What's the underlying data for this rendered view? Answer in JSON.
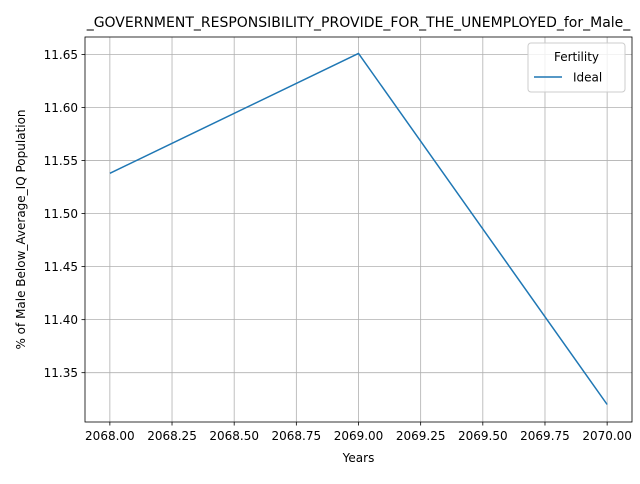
{
  "chart_data": {
    "type": "line",
    "title": "_GOVERNMENT_RESPONSIBILITY_PROVIDE_FOR_THE_UNEMPLOYED_for_Male_",
    "xlabel": "Years",
    "ylabel": "% of Male Below_Average_IQ Population",
    "xlim": [
      2067.9,
      2070.1
    ],
    "ylim": [
      11.3035,
      11.6665
    ],
    "grid": true,
    "x_ticks": [
      2068.0,
      2068.25,
      2068.5,
      2068.75,
      2069.0,
      2069.25,
      2069.5,
      2069.75,
      2070.0
    ],
    "x_tick_labels": [
      "2068.00",
      "2068.25",
      "2068.50",
      "2068.75",
      "2069.00",
      "2069.25",
      "2069.50",
      "2069.75",
      "2070.00"
    ],
    "y_ticks": [
      11.35,
      11.4,
      11.45,
      11.5,
      11.55,
      11.6,
      11.65
    ],
    "y_tick_labels": [
      "11.35",
      "11.40",
      "11.45",
      "11.50",
      "11.55",
      "11.60",
      "11.65"
    ],
    "legend": {
      "title": "Fertility",
      "placement": "top-right"
    },
    "series": [
      {
        "name": "Ideal",
        "color": "#1f77b4",
        "x": [
          2068,
          2069,
          2070
        ],
        "y": [
          11.538,
          11.651,
          11.32
        ]
      }
    ]
  }
}
